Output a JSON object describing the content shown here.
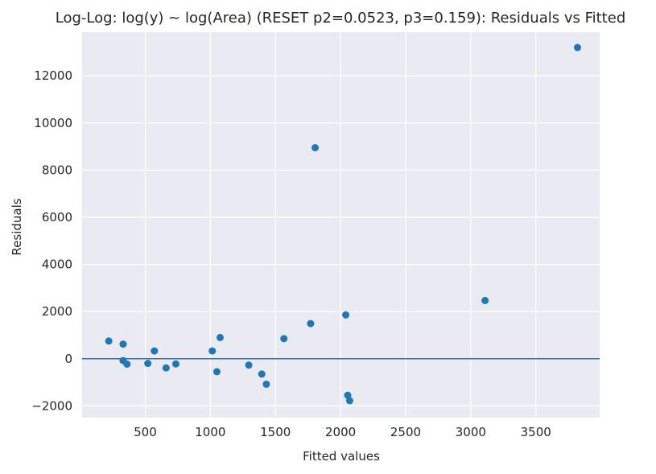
{
  "chart_data": {
    "type": "scatter",
    "title": "Log-Log: log(y) ~ log(Area) (RESET p2=0.0523, p3=0.159): Residuals vs Fitted",
    "xlabel": "Fitted values",
    "ylabel": "Residuals",
    "xlim": [
      15,
      3990
    ],
    "ylim": [
      -2500,
      13850
    ],
    "xticks": [
      500,
      1000,
      1500,
      2000,
      2500,
      3000,
      3500
    ],
    "xtick_labels": [
      "500",
      "1000",
      "1500",
      "2000",
      "2500",
      "3000",
      "3500"
    ],
    "yticks": [
      -2000,
      0,
      2000,
      4000,
      6000,
      8000,
      10000,
      12000
    ],
    "ytick_labels": [
      "−2000",
      "0",
      "2000",
      "4000",
      "6000",
      "8000",
      "10000",
      "12000"
    ],
    "grid": true,
    "reference_line_y": 0,
    "series": [
      {
        "color": "#1f77b4",
        "points": [
          {
            "x": 220,
            "y": 750
          },
          {
            "x": 330,
            "y": 620
          },
          {
            "x": 330,
            "y": -80
          },
          {
            "x": 360,
            "y": -230
          },
          {
            "x": 520,
            "y": -200
          },
          {
            "x": 570,
            "y": 330
          },
          {
            "x": 660,
            "y": -390
          },
          {
            "x": 735,
            "y": -220
          },
          {
            "x": 1015,
            "y": 330
          },
          {
            "x": 1050,
            "y": -550
          },
          {
            "x": 1075,
            "y": 900
          },
          {
            "x": 1295,
            "y": -270
          },
          {
            "x": 1395,
            "y": -650
          },
          {
            "x": 1430,
            "y": -1080
          },
          {
            "x": 1565,
            "y": 850
          },
          {
            "x": 1770,
            "y": 1490
          },
          {
            "x": 1805,
            "y": 8950
          },
          {
            "x": 2040,
            "y": 1860
          },
          {
            "x": 2055,
            "y": -1550
          },
          {
            "x": 2070,
            "y": -1780
          },
          {
            "x": 3110,
            "y": 2470
          },
          {
            "x": 3820,
            "y": 13200
          }
        ]
      }
    ],
    "colors": {
      "plot_background": "#eaeaf2",
      "grid": "#ffffff",
      "point": "#1f77b4",
      "reference_line": "#1f77b4",
      "text": "#262626"
    }
  }
}
